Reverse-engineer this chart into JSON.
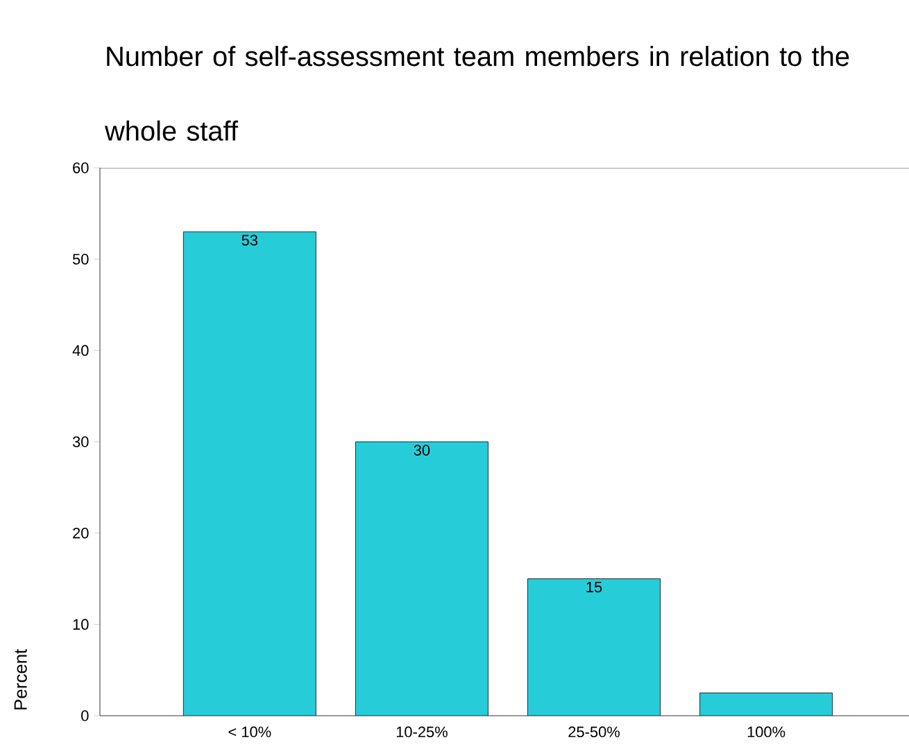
{
  "chart_data": {
    "type": "bar",
    "title": "Number of self-assessment team members in relation to the whole staff",
    "ylabel": "Percent",
    "categories": [
      "< 10%",
      "10-25%",
      "25-50%",
      "100%"
    ],
    "values": [
      53,
      30,
      15,
      2.5
    ],
    "value_labels": [
      "53",
      "30",
      "15",
      null
    ],
    "color": "#26cdd9",
    "ylim": [
      0,
      60
    ],
    "yticks": [
      0,
      10,
      20,
      30,
      40,
      50,
      60
    ]
  }
}
